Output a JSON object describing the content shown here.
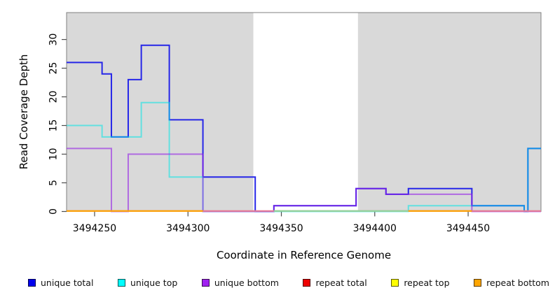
{
  "figure": {
    "xlabel": "Coordinate in Reference Genome",
    "ylabel": "Read Coverage Depth"
  },
  "chart_data": {
    "type": "line",
    "subtype": "step",
    "title": "",
    "xlabel": "Coordinate in Reference Genome",
    "ylabel": "Read Coverage Depth",
    "grid": false,
    "panel_color": "#D9D9D9",
    "border_color": "#808080",
    "white_gap_region": [
      3494335,
      3494391
    ],
    "xlim": [
      3494235,
      3494489
    ],
    "ylim": [
      0,
      34.7
    ],
    "x_ticks": [
      3494250,
      3494300,
      3494350,
      3494400,
      3494450
    ],
    "y_ticks": [
      0,
      5,
      10,
      15,
      20,
      25,
      30
    ],
    "series": [
      {
        "name": "unique total",
        "color": "#2626E8",
        "opacity": 1,
        "width": 2,
        "render": "line",
        "points": [
          [
            3494235,
            26
          ],
          [
            3494254,
            24
          ],
          [
            3494259,
            13
          ],
          [
            3494268,
            23
          ],
          [
            3494275,
            29
          ],
          [
            3494290,
            16
          ],
          [
            3494308,
            6
          ],
          [
            3494336,
            0
          ],
          [
            3494346,
            1
          ],
          [
            3494390,
            4
          ],
          [
            3494406,
            3
          ],
          [
            3494418,
            4
          ],
          [
            3494452,
            1
          ],
          [
            3494480,
            0
          ],
          [
            3494482,
            11
          ],
          [
            3494489,
            11
          ]
        ]
      },
      {
        "name": "unique top",
        "color": "#00E5E5",
        "opacity": 0.55,
        "width": 2,
        "render": "line",
        "points": [
          [
            3494235,
            15
          ],
          [
            3494254,
            13
          ],
          [
            3494275,
            19
          ],
          [
            3494290,
            6
          ],
          [
            3494308,
            0
          ],
          [
            3494418,
            1
          ],
          [
            3494480,
            0
          ],
          [
            3494482,
            11
          ],
          [
            3494489,
            11
          ]
        ]
      },
      {
        "name": "unique bottom",
        "color": "#9420E6",
        "opacity": 0.6,
        "width": 2,
        "render": "line",
        "points": [
          [
            3494235,
            11
          ],
          [
            3494259,
            0
          ],
          [
            3494268,
            10
          ],
          [
            3494308,
            0
          ],
          [
            3494346,
            1
          ],
          [
            3494390,
            4
          ],
          [
            3494406,
            3
          ],
          [
            3494452,
            0
          ],
          [
            3494489,
            0
          ]
        ]
      },
      {
        "name": "repeat total",
        "color": "#EE0000",
        "opacity": 1,
        "width": 2,
        "render": "floor",
        "points": [
          [
            3494235,
            0
          ],
          [
            3494489,
            0
          ]
        ]
      },
      {
        "name": "repeat top",
        "color": "#FFFF00",
        "opacity": 1,
        "width": 2,
        "render": "floor",
        "points": [
          [
            3494235,
            0
          ],
          [
            3494489,
            0
          ]
        ]
      },
      {
        "name": "repeat bottom",
        "color": "#FFA500",
        "opacity": 1,
        "width": 2,
        "render": "floor",
        "points": [
          [
            3494235,
            0
          ],
          [
            3494489,
            0
          ]
        ]
      }
    ],
    "floor_segments": [
      {
        "color": "#E87A95",
        "from": 3494235,
        "to": 3494489
      },
      {
        "color": "#8FD79C",
        "from": 3494346,
        "to": 3494418
      },
      {
        "color": "#FFA500",
        "from": 3494235,
        "to": 3494308
      },
      {
        "color": "#FFA500",
        "from": 3494418,
        "to": 3494452
      }
    ],
    "legend_position": "bottom"
  },
  "legend": {
    "items": [
      {
        "label": "unique total",
        "color": "#0000EE"
      },
      {
        "label": "unique top",
        "color": "#00FFFF"
      },
      {
        "label": "unique bottom",
        "color": "#A020F0"
      },
      {
        "label": "repeat total",
        "color": "#EE0000"
      },
      {
        "label": "repeat top",
        "color": "#FFFF00"
      },
      {
        "label": "repeat bottom",
        "color": "#FFA500"
      }
    ]
  }
}
